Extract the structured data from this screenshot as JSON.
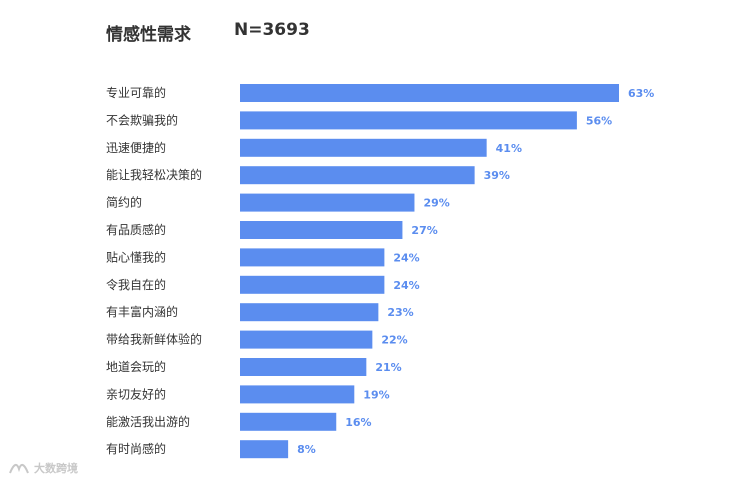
{
  "header": {
    "title": "情感性需求",
    "n": "N=3693"
  },
  "watermark": {
    "text": "大数跨境"
  },
  "colors": {
    "bar": "#5b8def",
    "value_label": "#5b8def",
    "category_label": "#333333"
  },
  "chart_data": {
    "type": "bar",
    "orientation": "horizontal",
    "categories": [
      "专业可靠的",
      "不会欺骗我的",
      "迅速便捷的",
      "能让我轻松决策的",
      "简约的",
      "有品质感的",
      "贴心懂我的",
      "令我自在的",
      "有丰富内涵的",
      "带给我新鲜体验的",
      "地道会玩的",
      "亲切友好的",
      "能激活我出游的",
      "有时尚感的"
    ],
    "values": [
      63,
      56,
      41,
      39,
      29,
      27,
      24,
      24,
      23,
      22,
      21,
      19,
      16,
      8
    ],
    "value_labels": [
      "63%",
      "56%",
      "41%",
      "39%",
      "29%",
      "27%",
      "24%",
      "24%",
      "23%",
      "22%",
      "21%",
      "19%",
      "16%",
      "8%"
    ],
    "unit": "%",
    "xlim": [
      0,
      63
    ],
    "grid": false,
    "legend": "none"
  }
}
